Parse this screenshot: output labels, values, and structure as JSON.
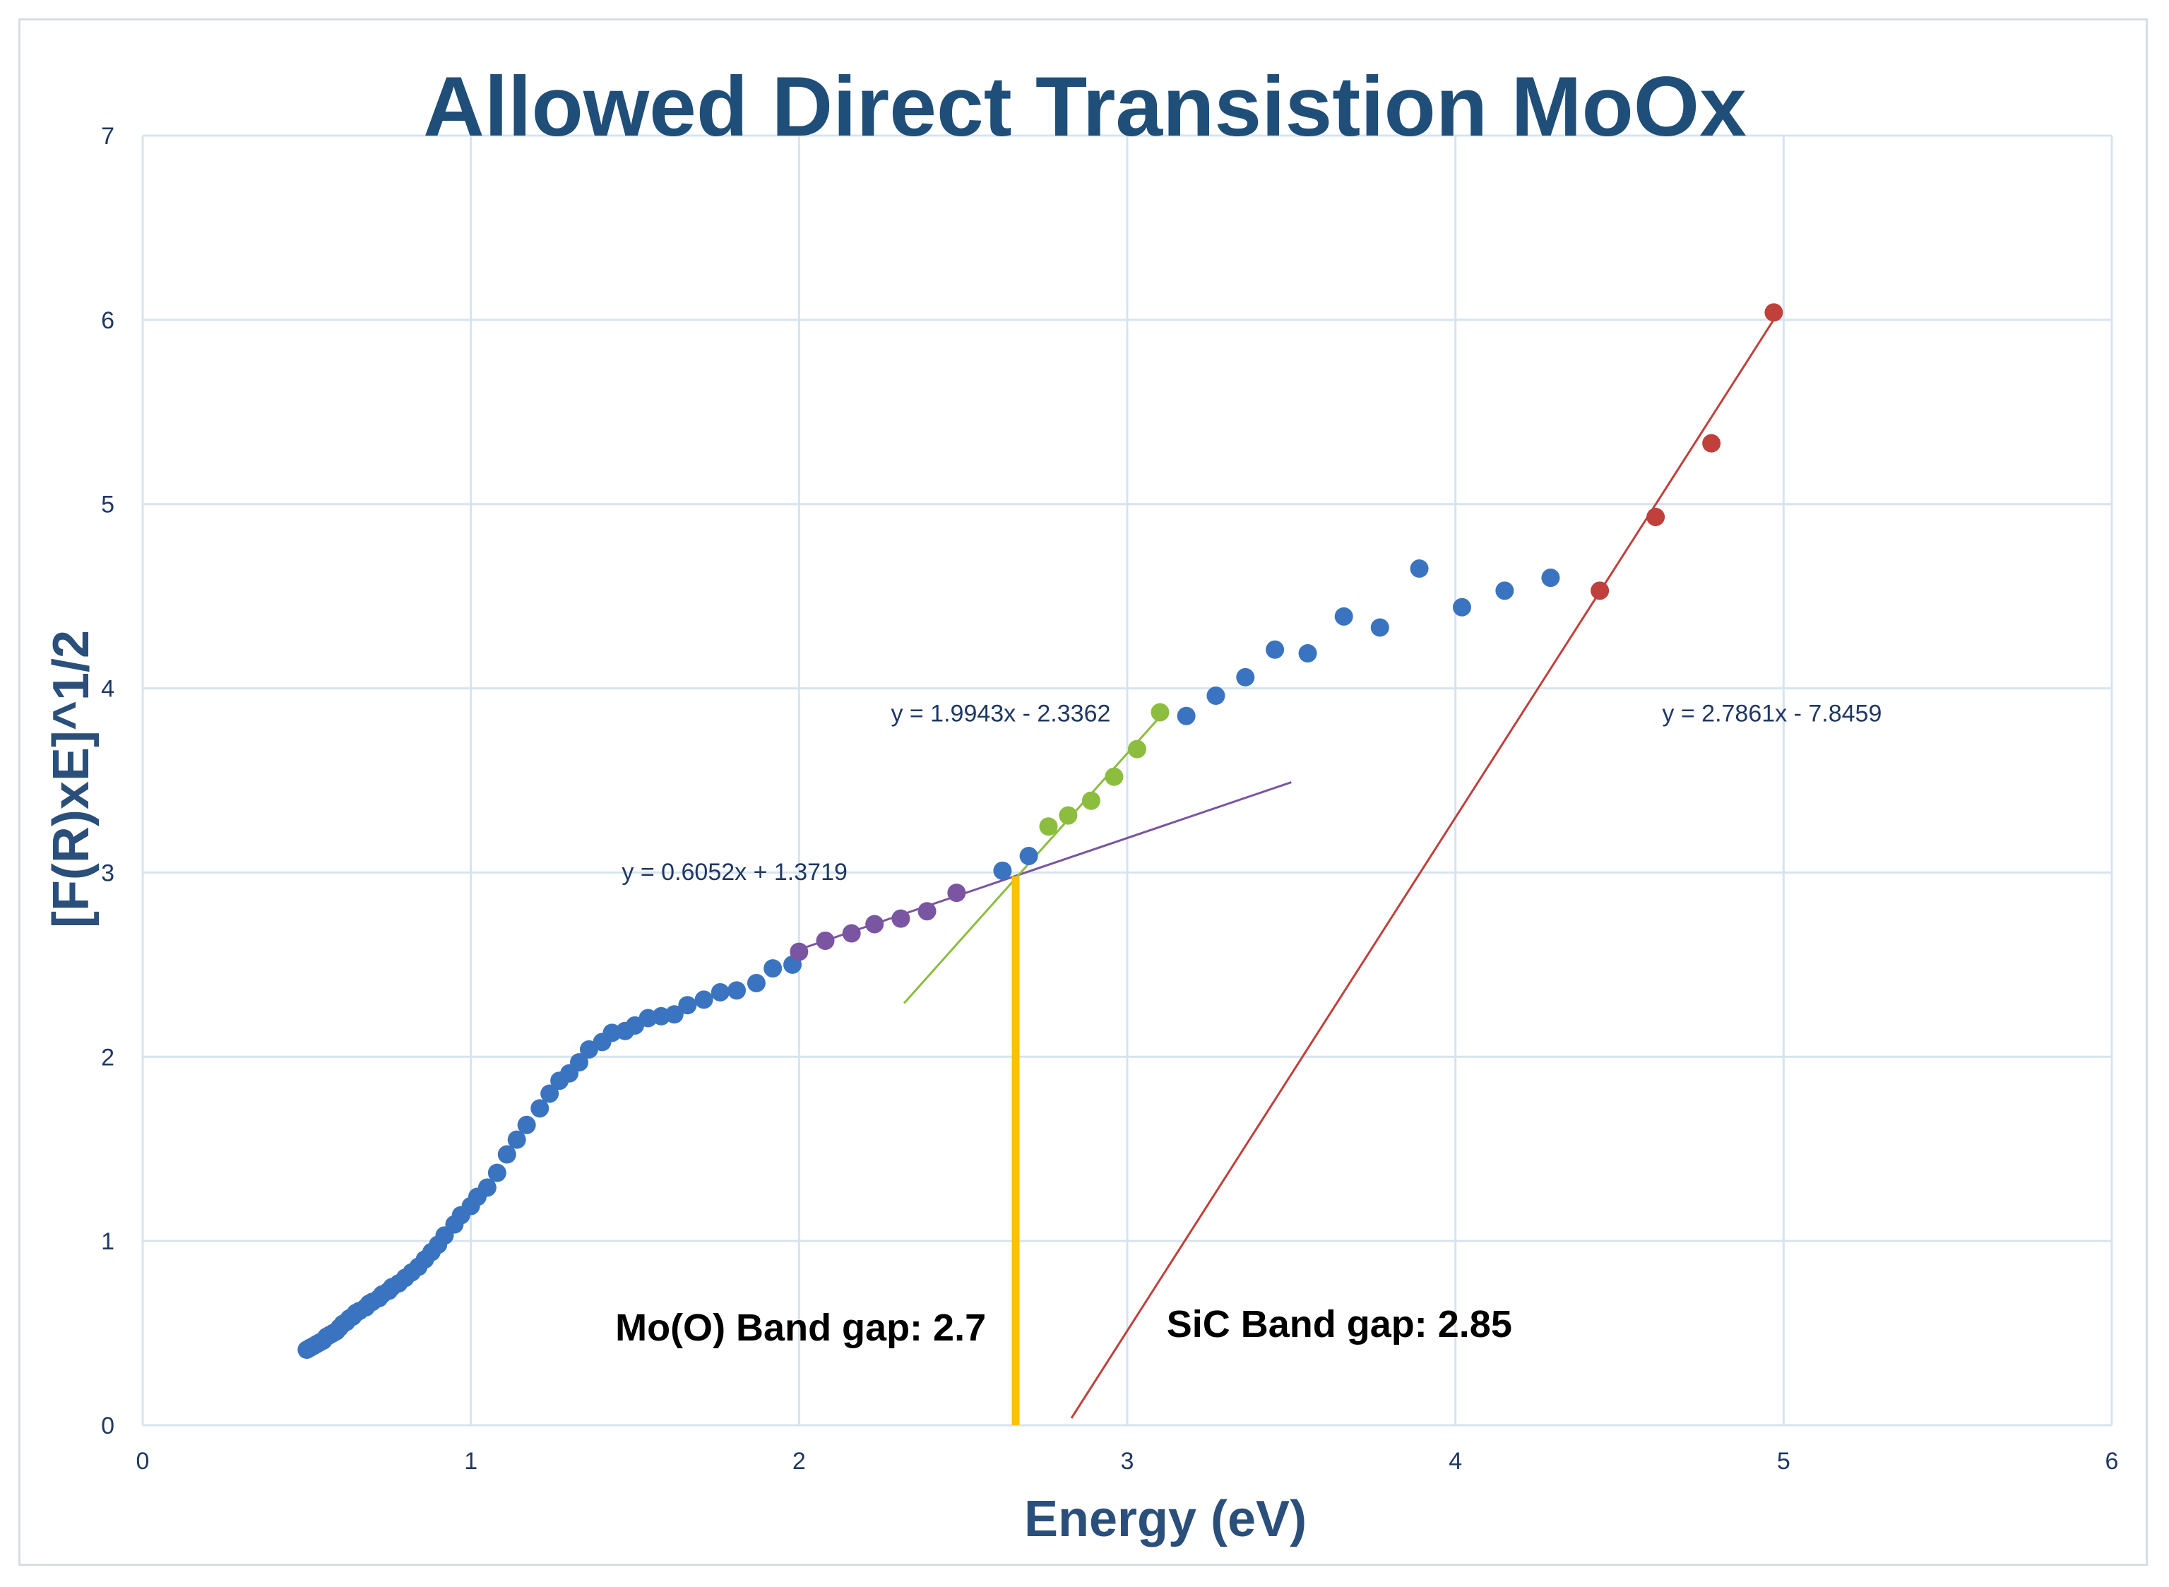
{
  "chart_data": {
    "type": "scatter",
    "title": "Allowed Direct Transistion MoOx",
    "xlabel": "Energy (eV)",
    "ylabel": "[F(R)xE]^1/2",
    "xlim": [
      0,
      6
    ],
    "ylim": [
      0,
      7
    ],
    "x_ticks": [
      "0",
      "1",
      "2",
      "3",
      "4",
      "5",
      "6"
    ],
    "y_ticks": [
      "0",
      "1",
      "2",
      "3",
      "4",
      "5",
      "6",
      "7"
    ],
    "grid": true,
    "colors": {
      "title": "#1f4e79",
      "axis_label": "#2a4f7a",
      "tick": "#1f3864",
      "grid": "#d6e4f0",
      "blue": "#3a74c1",
      "purple": "#7a55a2",
      "green": "#8cbd3f",
      "red": "#c0403b",
      "bandgap_marker": "#ffc000",
      "annotation": "#000000"
    },
    "series": [
      {
        "name": "data",
        "color_key": "blue",
        "points": [
          [
            0.5,
            0.41
          ],
          [
            0.51,
            0.42
          ],
          [
            0.52,
            0.43
          ],
          [
            0.53,
            0.44
          ],
          [
            0.54,
            0.45
          ],
          [
            0.55,
            0.46
          ],
          [
            0.56,
            0.48
          ],
          [
            0.57,
            0.49
          ],
          [
            0.58,
            0.5
          ],
          [
            0.59,
            0.51
          ],
          [
            0.6,
            0.53
          ],
          [
            0.61,
            0.55
          ],
          [
            0.62,
            0.56
          ],
          [
            0.63,
            0.58
          ],
          [
            0.64,
            0.59
          ],
          [
            0.65,
            0.61
          ],
          [
            0.66,
            0.62
          ],
          [
            0.68,
            0.64
          ],
          [
            0.69,
            0.66
          ],
          [
            0.7,
            0.67
          ],
          [
            0.72,
            0.69
          ],
          [
            0.73,
            0.71
          ],
          [
            0.75,
            0.73
          ],
          [
            0.76,
            0.75
          ],
          [
            0.78,
            0.77
          ],
          [
            0.8,
            0.8
          ],
          [
            0.82,
            0.83
          ],
          [
            0.84,
            0.86
          ],
          [
            0.86,
            0.9
          ],
          [
            0.88,
            0.94
          ],
          [
            0.9,
            0.98
          ],
          [
            0.92,
            1.03
          ],
          [
            0.95,
            1.09
          ],
          [
            0.97,
            1.14
          ],
          [
            1.0,
            1.19
          ],
          [
            1.02,
            1.24
          ],
          [
            1.05,
            1.29
          ],
          [
            1.08,
            1.37
          ],
          [
            1.11,
            1.47
          ],
          [
            1.14,
            1.55
          ],
          [
            1.17,
            1.63
          ],
          [
            1.21,
            1.72
          ],
          [
            1.24,
            1.8
          ],
          [
            1.27,
            1.87
          ],
          [
            1.3,
            1.91
          ],
          [
            1.33,
            1.97
          ],
          [
            1.36,
            2.04
          ],
          [
            1.4,
            2.08
          ],
          [
            1.43,
            2.13
          ],
          [
            1.47,
            2.14
          ],
          [
            1.5,
            2.17
          ],
          [
            1.54,
            2.21
          ],
          [
            1.58,
            2.22
          ],
          [
            1.62,
            2.23
          ],
          [
            1.66,
            2.28
          ],
          [
            1.71,
            2.31
          ],
          [
            1.76,
            2.35
          ],
          [
            1.81,
            2.36
          ],
          [
            1.87,
            2.4
          ],
          [
            1.92,
            2.48
          ],
          [
            1.98,
            2.5
          ],
          [
            2.62,
            3.01
          ],
          [
            2.7,
            3.09
          ],
          [
            3.18,
            3.85
          ],
          [
            3.27,
            3.96
          ],
          [
            3.36,
            4.06
          ],
          [
            3.45,
            4.21
          ],
          [
            3.55,
            4.19
          ],
          [
            3.66,
            4.39
          ],
          [
            3.77,
            4.33
          ],
          [
            3.89,
            4.65
          ],
          [
            4.02,
            4.44
          ],
          [
            4.15,
            4.53
          ],
          [
            4.29,
            4.6
          ]
        ]
      },
      {
        "name": "purple fit points",
        "color_key": "purple",
        "points": [
          [
            2.0,
            2.57
          ],
          [
            2.08,
            2.63
          ],
          [
            2.16,
            2.67
          ],
          [
            2.23,
            2.72
          ],
          [
            2.31,
            2.75
          ],
          [
            2.39,
            2.79
          ],
          [
            2.48,
            2.89
          ]
        ]
      },
      {
        "name": "green fit points",
        "color_key": "green",
        "points": [
          [
            2.76,
            3.25
          ],
          [
            2.82,
            3.31
          ],
          [
            2.89,
            3.39
          ],
          [
            2.96,
            3.52
          ],
          [
            3.03,
            3.67
          ],
          [
            3.1,
            3.87
          ]
        ]
      },
      {
        "name": "red fit points",
        "color_key": "red",
        "points": [
          [
            4.44,
            4.53
          ],
          [
            4.61,
            4.93
          ],
          [
            4.78,
            5.33
          ],
          [
            4.97,
            6.04
          ]
        ]
      }
    ],
    "fit_lines": [
      {
        "equation": "y = 0.6052x + 1.3719",
        "slope": 0.6052,
        "intercept": 1.3719,
        "x_range": [
          2.0,
          3.5
        ],
        "color_key": "purple",
        "label_at": [
          1.46,
          2.96
        ]
      },
      {
        "equation": "y = 1.9943x - 2.3362",
        "slope": 1.9943,
        "intercept": -2.3362,
        "x_range": [
          2.32,
          3.12
        ],
        "color_key": "green",
        "label_at": [
          2.28,
          3.82
        ]
      },
      {
        "equation": "y = 2.7861x - 7.8459",
        "slope": 2.7861,
        "intercept": -7.8459,
        "x_range": [
          2.83,
          4.97
        ],
        "color_key": "red",
        "label_at": [
          4.63,
          3.82
        ]
      }
    ],
    "bandgap_marker": {
      "x": 2.66,
      "y_top": 2.98
    },
    "annotations": [
      {
        "text": "Mo(O) Band gap: 2.7",
        "at": [
          1.44,
          0.46
        ]
      },
      {
        "text": "SiC Band gap: 2.85",
        "at": [
          3.12,
          0.48
        ]
      }
    ]
  }
}
